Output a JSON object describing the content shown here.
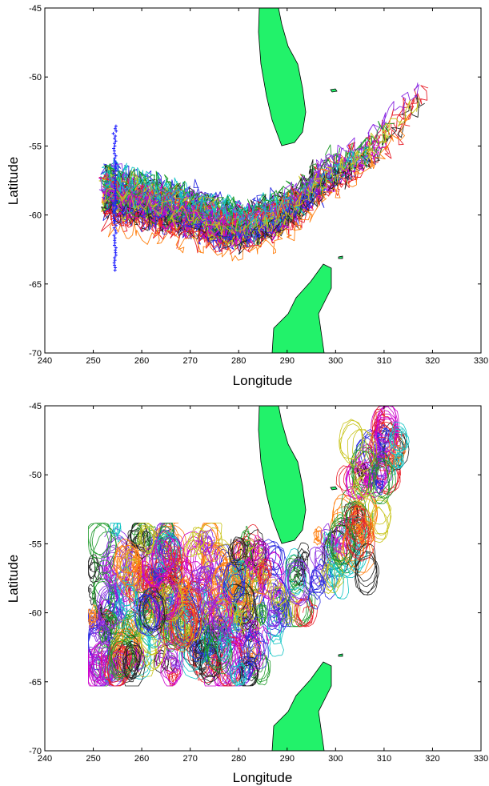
{
  "chart_data": [
    {
      "type": "line",
      "title": "",
      "xlabel": "Longitude",
      "ylabel": "Latitude",
      "xlim": [
        240,
        330
      ],
      "ylim": [
        -70,
        -45
      ],
      "xticks": [
        240,
        250,
        260,
        270,
        280,
        290,
        300,
        310,
        320,
        330
      ],
      "yticks": [
        -70,
        -65,
        -60,
        -55,
        -50,
        -45
      ],
      "grid": false,
      "land_color": "#22f26a",
      "release_marker_color": "#1a1aff",
      "release_longitude": 254.5,
      "release_latitude_range": [
        -64,
        -53.5
      ],
      "trajectory_count": 60,
      "series_colors": [
        "#e8202a",
        "#2a2ae0",
        "#1e9a2a",
        "#cc00cc",
        "#11c4c4",
        "#c8c41a",
        "#222222",
        "#ff7f0e",
        "#8a2be2"
      ],
      "corridor": {
        "lon": [
          252,
          258,
          264,
          270,
          276,
          282,
          288,
          292,
          296,
          300,
          304,
          308,
          312,
          316,
          319
        ],
        "lat": [
          -58.5,
          -59,
          -59.5,
          -60,
          -60.8,
          -61,
          -60.2,
          -59.2,
          -57.8,
          -56.8,
          -56,
          -55,
          -53.5,
          -52,
          -51
        ]
      }
    },
    {
      "type": "line",
      "title": "",
      "xlabel": "Longitude",
      "ylabel": "Latitude",
      "xlim": [
        240,
        330
      ],
      "ylim": [
        -70,
        -45
      ],
      "xticks": [
        240,
        250,
        260,
        270,
        280,
        290,
        300,
        310,
        320,
        330
      ],
      "yticks": [
        -70,
        -65,
        -60,
        -55,
        -50,
        -45
      ],
      "grid": false,
      "land_color": "#22f26a",
      "trajectory_count": 260,
      "series_colors": [
        "#e8202a",
        "#2a2ae0",
        "#1e9a2a",
        "#cc00cc",
        "#11c4c4",
        "#c8c41a",
        "#222222",
        "#ff7f0e",
        "#8a2be2"
      ],
      "region": {
        "west_box": {
          "lon": [
            250,
            287
          ],
          "lat": [
            -64.5,
            -54
          ]
        },
        "corridor": {
          "lon": [
            287,
            292,
            296,
            300,
            304,
            306,
            308,
            310,
            312
          ],
          "lat": [
            -59.5,
            -58,
            -56.5,
            -55.5,
            -54.5,
            -52,
            -50,
            -48,
            -46
          ]
        }
      }
    }
  ]
}
